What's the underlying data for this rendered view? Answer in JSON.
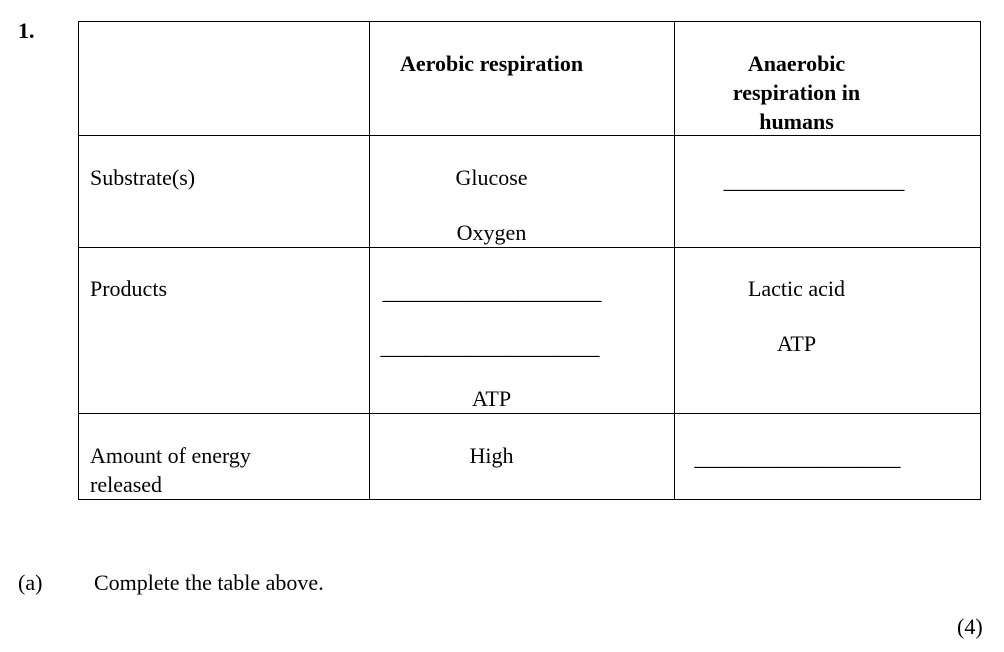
{
  "question_number": "1.",
  "table": {
    "headers": [
      "",
      "Aerobic respiration",
      "Anaerobic respiration in humans"
    ],
    "header_anaerobic_lines": [
      "Anaerobic",
      "respiration in",
      "humans"
    ],
    "rows": [
      {
        "label": "Substrate(s)",
        "aerobic": [
          "Glucose",
          "Oxygen"
        ],
        "anaerobic": [
          "_____"
        ]
      },
      {
        "label": "Products",
        "aerobic": [
          "_____",
          "_____",
          "ATP"
        ],
        "anaerobic": [
          "Lactic acid",
          "ATP"
        ]
      },
      {
        "label_lines": [
          "Amount of energy",
          "released"
        ],
        "aerobic": [
          "High"
        ],
        "anaerobic": [
          "_____"
        ]
      }
    ]
  },
  "part_a": {
    "label": "(a)",
    "text": "Complete the table above.",
    "marks": "(4)"
  }
}
